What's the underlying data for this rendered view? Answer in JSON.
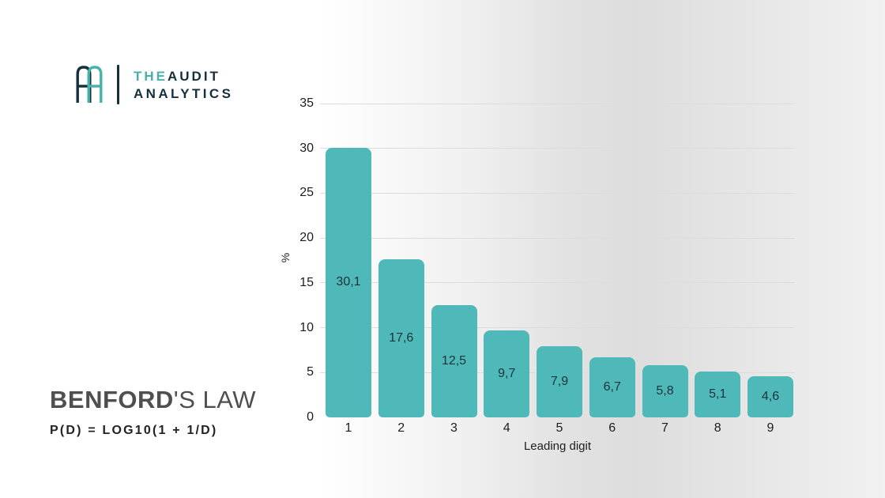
{
  "logo": {
    "monogram": "AA",
    "line1_the": "THE",
    "line1_audit": "AUDIT",
    "line2": "ANALYTICS",
    "navy": "#14303c",
    "teal": "#47b1aa"
  },
  "title": {
    "bold": "BENFORD",
    "rest": "'S LAW"
  },
  "formula": "P(D) = LOG10(1 + 1/D)",
  "chart_data": {
    "type": "bar",
    "title": "",
    "categories": [
      "1",
      "2",
      "3",
      "4",
      "5",
      "6",
      "7",
      "8",
      "9"
    ],
    "values": [
      30.1,
      17.6,
      12.5,
      9.7,
      7.9,
      6.7,
      5.8,
      5.1,
      4.6
    ],
    "value_labels": [
      "30,1",
      "17,6",
      "12,5",
      "9,7",
      "7,9",
      "6,7",
      "5,8",
      "5,1",
      "4,6"
    ],
    "xlabel": "Leading digit",
    "ylabel": "%",
    "y_ticks": [
      0,
      5,
      10,
      15,
      20,
      25,
      30,
      35
    ],
    "ylim": [
      0,
      35
    ],
    "grid": true,
    "legend": "none",
    "bar_color": "#4fb9b9",
    "label_color": "#1c323a",
    "gridline_color": "#dcdcdc"
  }
}
